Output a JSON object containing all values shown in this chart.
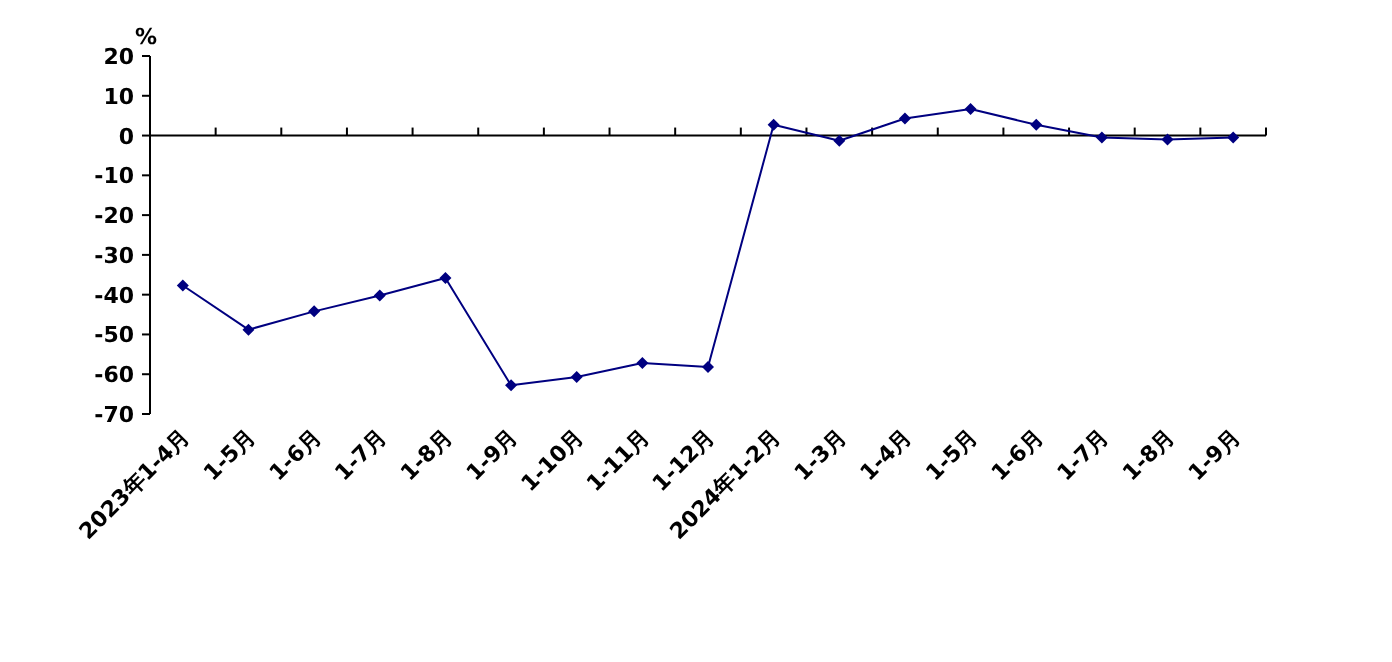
{
  "chart_data": {
    "type": "line",
    "ylabel": "%",
    "categories": [
      "2023年1-4月",
      "1-5月",
      "1-6月",
      "1-7月",
      "1-8月",
      "1-9月",
      "1-10月",
      "1-11月",
      "1-12月",
      "2024年1-2月",
      "1-3月",
      "1-4月",
      "1-5月",
      "1-6月",
      "1-7月",
      "1-8月",
      "1-9月"
    ],
    "series": [
      {
        "color": "#000080",
        "values": [
          -37.7,
          -48.8,
          -44.2,
          -40.2,
          -35.8,
          -62.8,
          -60.7,
          -57.2,
          -58.2,
          2.7,
          -1.3,
          4.3,
          6.7,
          2.7,
          -0.5,
          -1.0,
          -0.5
        ]
      }
    ],
    "ylim": [
      -70,
      20
    ],
    "yticks": [
      -70,
      -60,
      -50,
      -40,
      -30,
      -20,
      -10,
      0,
      10,
      20
    ],
    "marker": "diamond",
    "line_style": "solid"
  }
}
